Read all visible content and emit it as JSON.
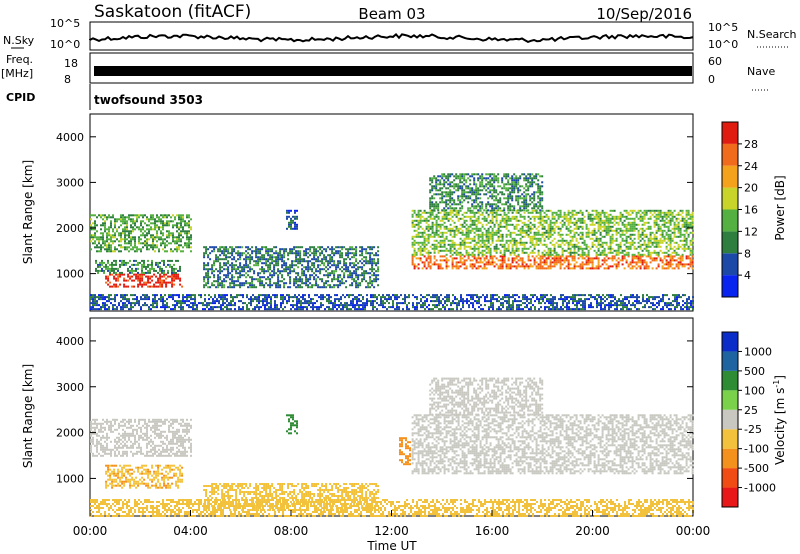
{
  "header": {
    "station": "Saskatoon (fitACF)",
    "beam": "Beam 03",
    "date": "10/Sep/2016"
  },
  "top_strip": {
    "left_label": "N.Sky",
    "right_label": "N.Search",
    "left_ticks": [
      "10^5",
      "10^0"
    ],
    "right_ticks": [
      "10^5",
      "10^0"
    ]
  },
  "freq_strip": {
    "left_label": "Freq.",
    "left_unit": "[MHz]",
    "right_label": "Nave",
    "left_ticks": [
      "18",
      "8"
    ],
    "right_ticks": [
      "60",
      "0"
    ]
  },
  "cpid": {
    "label": "CPID",
    "program": "twofsound 3503"
  },
  "x_axis": {
    "label": "Time UT",
    "ticks": [
      "00:00",
      "04:00",
      "08:00",
      "12:00",
      "16:00",
      "20:00",
      "00:00"
    ]
  },
  "colors": {
    "power": [
      "#0a24f0",
      "#1c48a8",
      "#2e7e40",
      "#54b040",
      "#c8d42a",
      "#f4a21c",
      "#f06c1c",
      "#e01c10"
    ],
    "velocity": [
      "#e81818",
      "#f04c14",
      "#f4901c",
      "#f2c23c",
      "#c8c8c0",
      "#7ad24a",
      "#2e8c34",
      "#1e64a0",
      "#0a2cc8"
    ]
  },
  "chart_data": [
    {
      "type": "heatmap",
      "title": "",
      "xlabel": "",
      "ylabel": "Slant Range [km]",
      "xlim": [
        0,
        24
      ],
      "ylim": [
        180,
        4500
      ],
      "y_ticks": [
        "1000",
        "2000",
        "3000",
        "4000"
      ],
      "colorbar": {
        "label": "Power [dB]",
        "ticks": [
          "4",
          "8",
          "12",
          "16",
          "20",
          "24",
          "28"
        ],
        "range": [
          0,
          30
        ]
      },
      "bands": [
        {
          "t0": 0.0,
          "t1": 4.0,
          "r0": 1500,
          "r1": 2300,
          "v": 12
        },
        {
          "t0": 0.6,
          "t1": 3.7,
          "r0": 700,
          "r1": 1000,
          "v": 28
        },
        {
          "t0": 0.2,
          "t1": 3.6,
          "r0": 1000,
          "r1": 1300,
          "v": 10
        },
        {
          "t0": 4.5,
          "t1": 11.5,
          "r0": 700,
          "r1": 1600,
          "v": 8
        },
        {
          "t0": 0.0,
          "t1": 24.0,
          "r0": 200,
          "r1": 550,
          "v": 6
        },
        {
          "t0": 12.8,
          "t1": 24.0,
          "r0": 1100,
          "r1": 1400,
          "v": 24
        },
        {
          "t0": 12.8,
          "t1": 24.0,
          "r0": 1400,
          "r1": 2400,
          "v": 14
        },
        {
          "t0": 13.5,
          "t1": 18.0,
          "r0": 2400,
          "r1": 3200,
          "v": 10
        },
        {
          "t0": 7.8,
          "t1": 8.2,
          "r0": 2000,
          "r1": 2400,
          "v": 6
        }
      ]
    },
    {
      "type": "heatmap",
      "title": "",
      "xlabel": "Time UT",
      "ylabel": "Slant Range [km]",
      "xlim": [
        0,
        24
      ],
      "ylim": [
        180,
        4500
      ],
      "y_ticks": [
        "1000",
        "2000",
        "3000",
        "4000"
      ],
      "colorbar": {
        "label": "Velocity [m s^-1]",
        "ticks": [
          "-1000",
          "-500",
          "-100",
          "-25",
          "25",
          "100",
          "500",
          "1000"
        ],
        "range": [
          -1200,
          1200
        ]
      },
      "bands": [
        {
          "t0": 0.0,
          "t1": 4.0,
          "r0": 1500,
          "r1": 2300,
          "v": 0
        },
        {
          "t0": 0.6,
          "t1": 3.7,
          "r0": 800,
          "r1": 1300,
          "v": -90
        },
        {
          "t0": 4.5,
          "t1": 11.5,
          "r0": 300,
          "r1": 900,
          "v": -60
        },
        {
          "t0": 0.0,
          "t1": 24.0,
          "r0": 200,
          "r1": 550,
          "v": -50
        },
        {
          "t0": 12.8,
          "t1": 24.0,
          "r0": 1100,
          "r1": 2400,
          "v": 0
        },
        {
          "t0": 13.5,
          "t1": 18.0,
          "r0": 2400,
          "r1": 3200,
          "v": 0
        },
        {
          "t0": 12.3,
          "t1": 12.7,
          "r0": 1300,
          "r1": 1900,
          "v": -200
        },
        {
          "t0": 7.8,
          "t1": 8.2,
          "r0": 2000,
          "r1": 2400,
          "v": 200
        }
      ]
    }
  ]
}
